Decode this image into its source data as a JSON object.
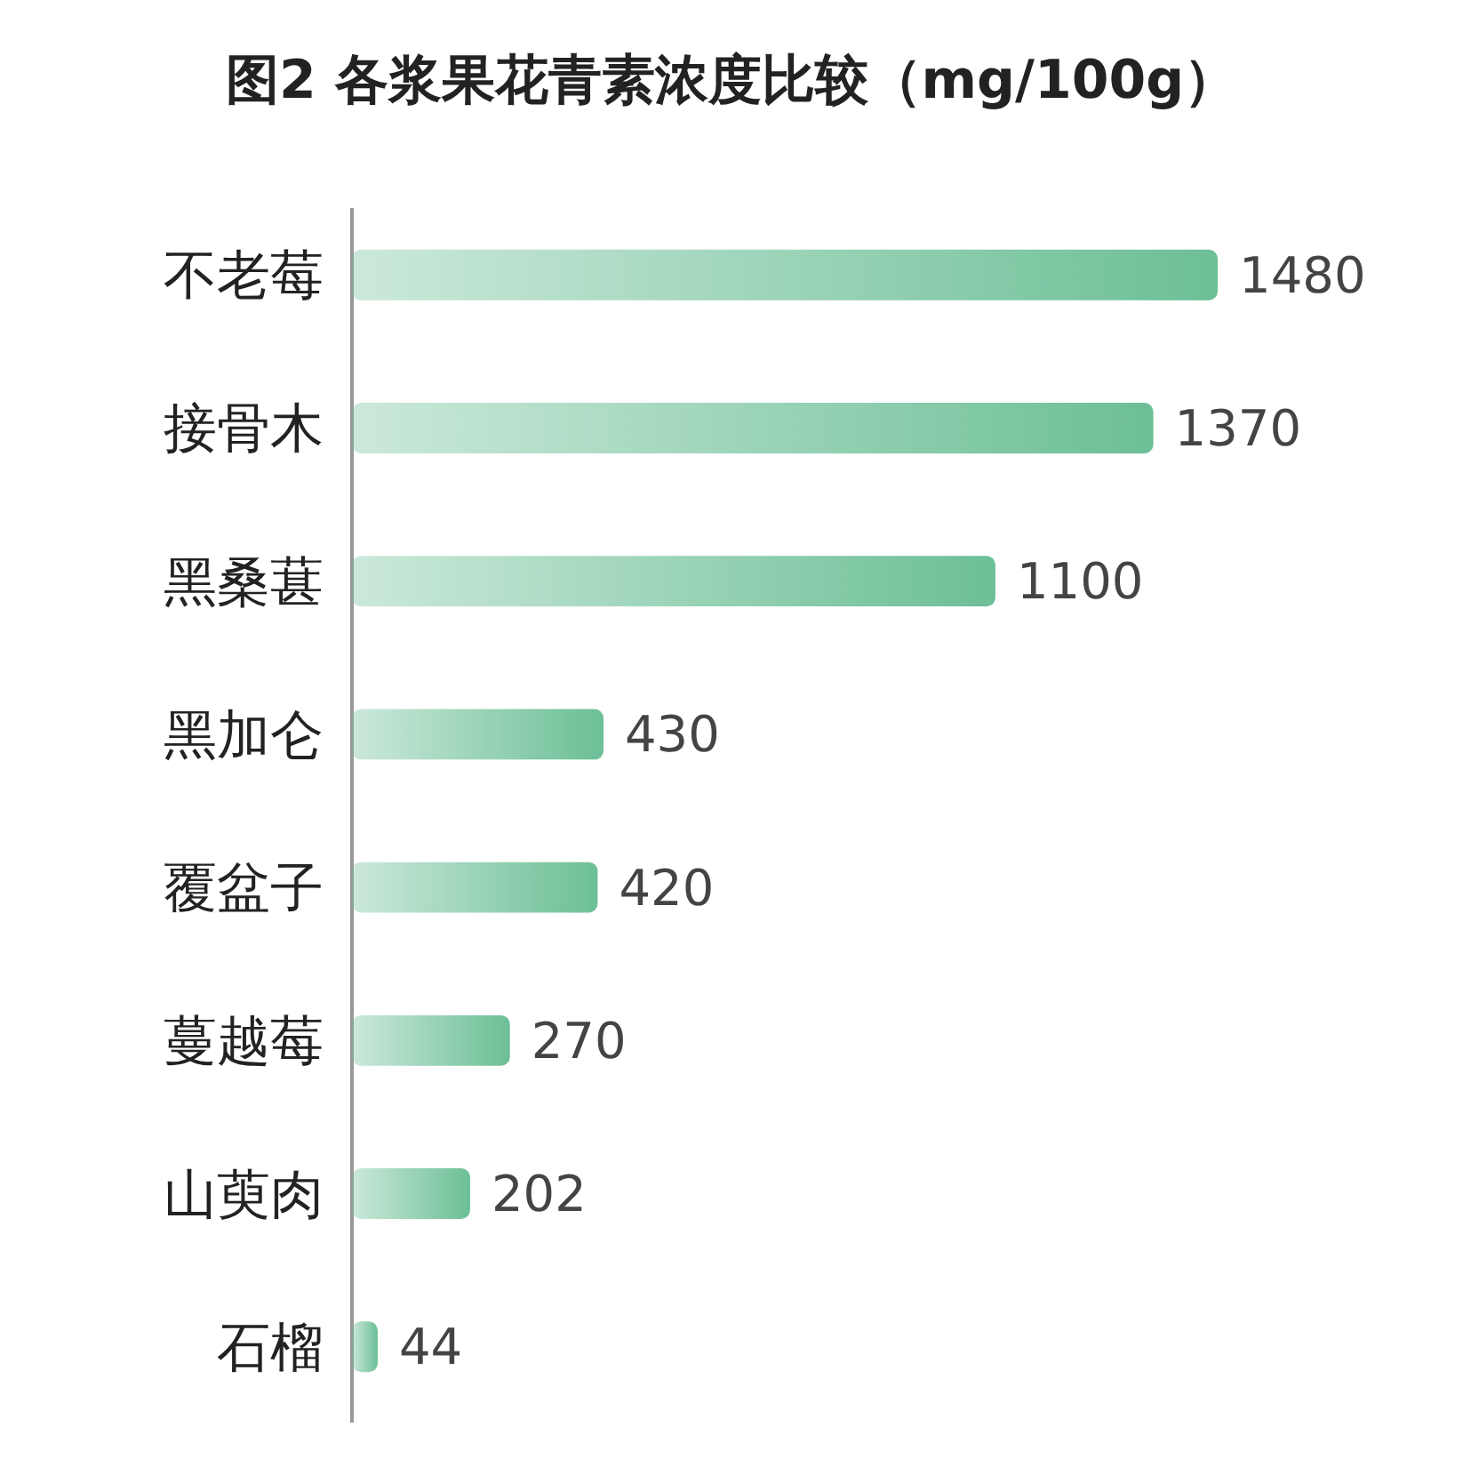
{
  "chart_data": {
    "type": "bar",
    "orientation": "horizontal",
    "title": "图2 各浆果花青素浓度比较（mg/100g）",
    "categories": [
      "不老莓",
      "接骨木",
      "黑桑葚",
      "黑加仑",
      "覆盆子",
      "蔓越莓",
      "山萸肉",
      "石榴"
    ],
    "values": [
      1480,
      1370,
      1100,
      430,
      420,
      270,
      202,
      44
    ],
    "color": "#6cbf96",
    "data_labels": true
  }
}
